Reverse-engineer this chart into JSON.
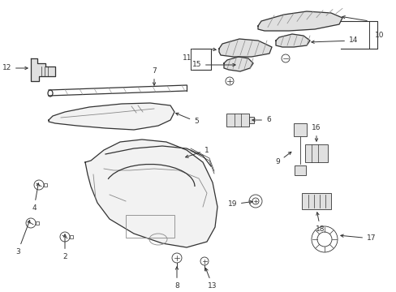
{
  "background_color": "#ffffff",
  "figsize": [
    4.89,
    3.6
  ],
  "dpi": 100,
  "gray": "#333333",
  "light": "#888888",
  "fill_light": "#f2f2f2",
  "fill_mid": "#e0e0e0"
}
